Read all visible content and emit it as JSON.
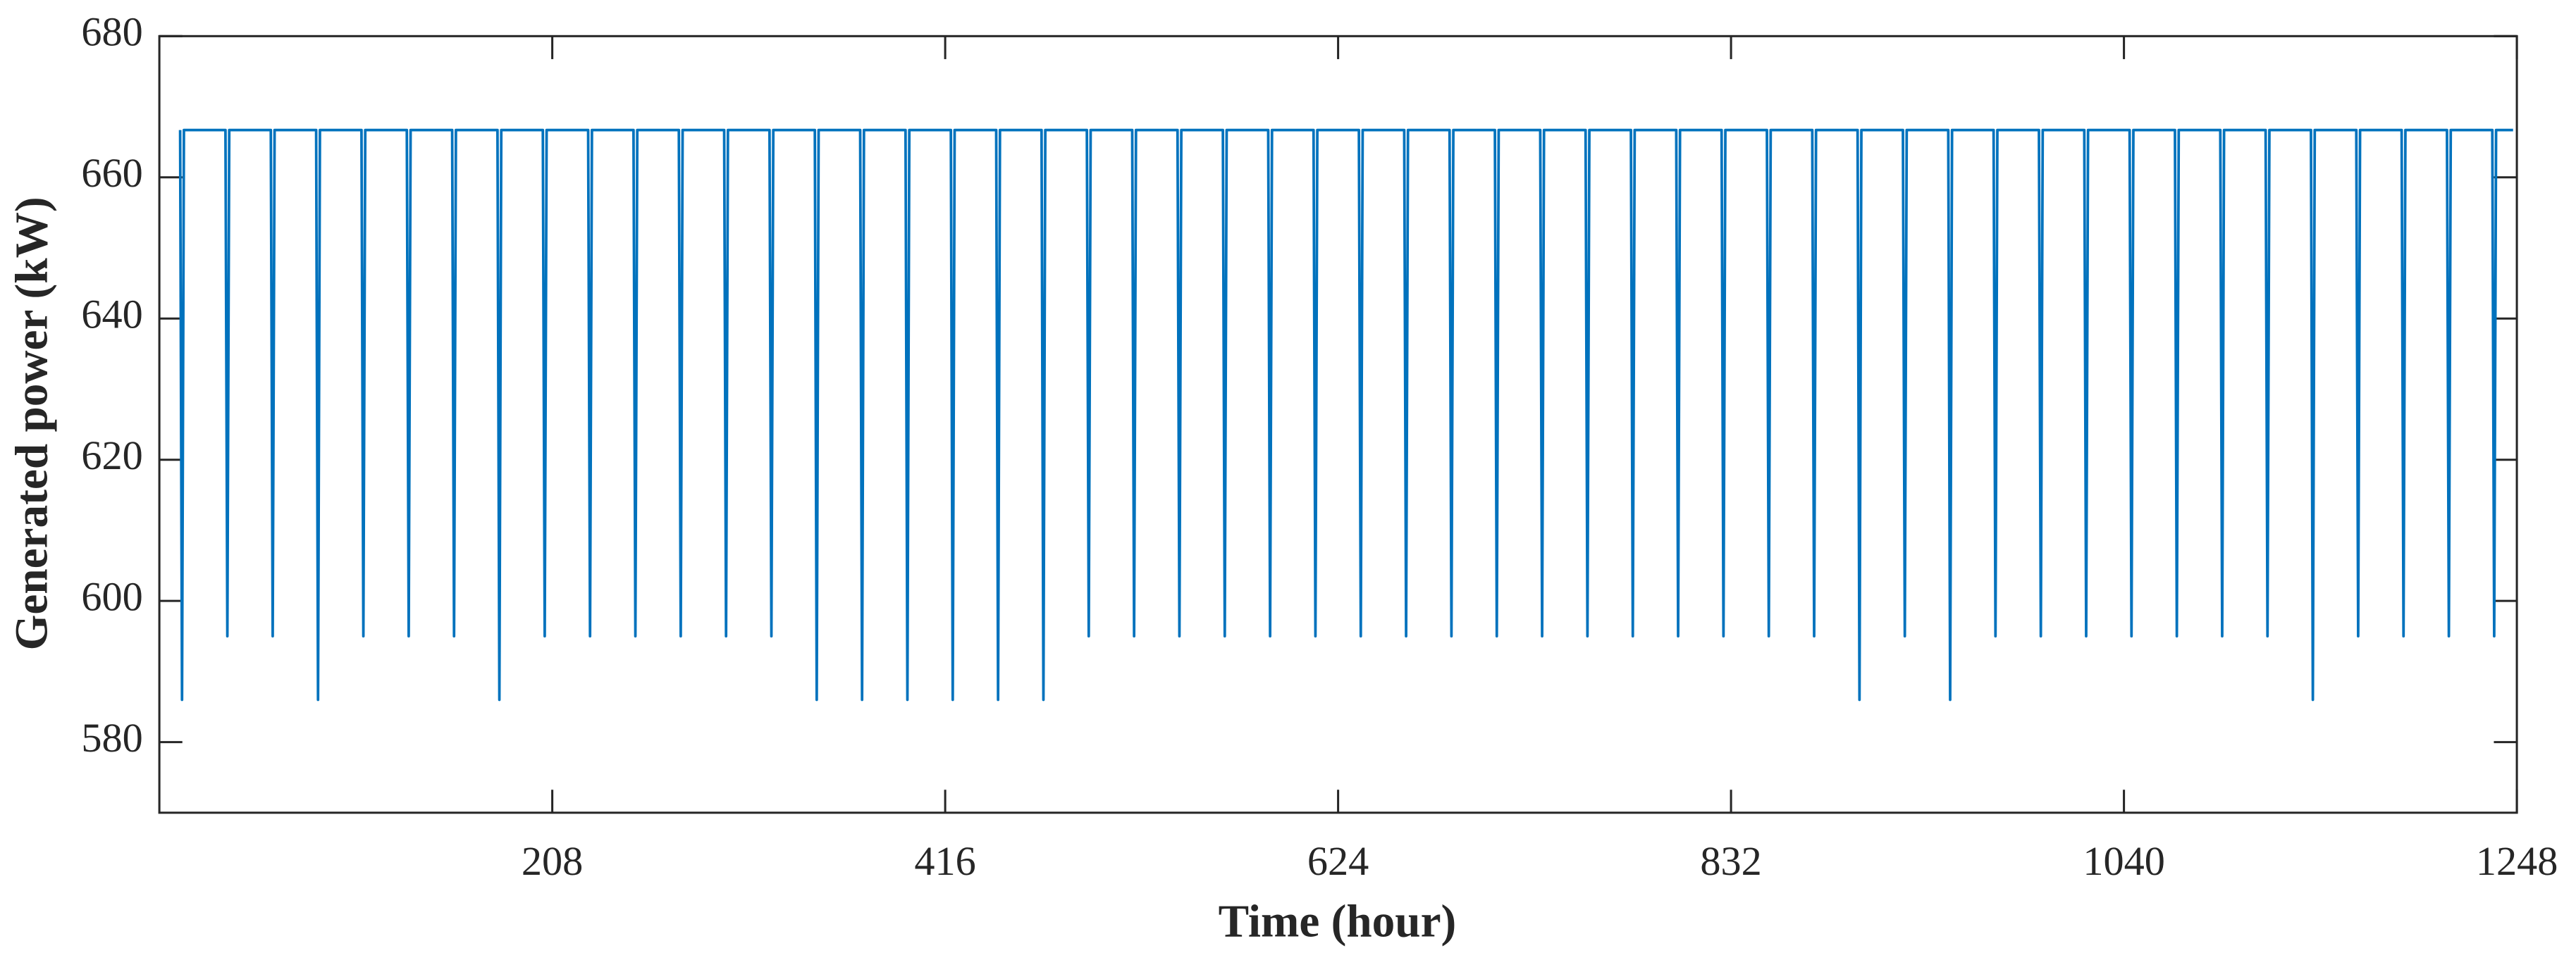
{
  "chart_data": {
    "type": "line",
    "x_label": "Time (hour)",
    "y_label": "Generated power (kW)",
    "color": "#0072bd",
    "xlim": [
      0,
      1248
    ],
    "xticks": [
      208,
      416,
      624,
      832,
      1040,
      1248
    ],
    "ylim": [
      570,
      680
    ],
    "yticks": [
      580,
      600,
      620,
      640,
      660,
      680
    ],
    "grid": false,
    "x": [
      11,
      12,
      13,
      35,
      36,
      37,
      59,
      60,
      61,
      83,
      84,
      85,
      107,
      108,
      109,
      131,
      132,
      133,
      155,
      156,
      157,
      179,
      180,
      181,
      203,
      204,
      205,
      227,
      228,
      229,
      251,
      252,
      253,
      275,
      276,
      277,
      299,
      300,
      301,
      323,
      324,
      325,
      347,
      348,
      349,
      371,
      372,
      373,
      395,
      396,
      397,
      419,
      420,
      421,
      443,
      444,
      445,
      467,
      468,
      469,
      491,
      492,
      493,
      515,
      516,
      517,
      539,
      540,
      541,
      563,
      564,
      565,
      587,
      588,
      589,
      611,
      612,
      613,
      635,
      636,
      637,
      659,
      660,
      661,
      683,
      684,
      685,
      707,
      708,
      709,
      731,
      732,
      733,
      755,
      756,
      757,
      779,
      780,
      781,
      803,
      804,
      805,
      827,
      828,
      829,
      851,
      852,
      853,
      875,
      876,
      877,
      899,
      900,
      901,
      923,
      924,
      925,
      947,
      948,
      949,
      971,
      972,
      973,
      995,
      996,
      997,
      1019,
      1020,
      1021,
      1043,
      1044,
      1045,
      1067,
      1068,
      1069,
      1091,
      1092,
      1093,
      1115,
      1116,
      1117,
      1139,
      1140,
      1141,
      1163,
      1164,
      1165,
      1187,
      1188,
      1189,
      1211,
      1212,
      1213,
      1235,
      1236,
      1237,
      1246
    ],
    "values": [
      666.7,
      586,
      666.7,
      666.7,
      595,
      666.7,
      666.7,
      595,
      666.7,
      666.7,
      586,
      666.7,
      666.7,
      595,
      666.7,
      666.7,
      595,
      666.7,
      666.7,
      595,
      666.7,
      666.7,
      586,
      666.7,
      666.7,
      595,
      666.7,
      666.7,
      595,
      666.7,
      666.7,
      595,
      666.7,
      666.7,
      595,
      666.7,
      666.7,
      595,
      666.7,
      666.7,
      595,
      666.7,
      666.7,
      586,
      666.7,
      666.7,
      586,
      666.7,
      666.7,
      586,
      666.7,
      666.7,
      586,
      666.7,
      666.7,
      586,
      666.7,
      666.7,
      586,
      666.7,
      666.7,
      595,
      666.7,
      666.7,
      595,
      666.7,
      666.7,
      595,
      666.7,
      666.7,
      595,
      666.7,
      666.7,
      595,
      666.7,
      666.7,
      595,
      666.7,
      666.7,
      595,
      666.7,
      666.7,
      595,
      666.7,
      666.7,
      595,
      666.7,
      666.7,
      595,
      666.7,
      666.7,
      595,
      666.7,
      666.7,
      595,
      666.7,
      666.7,
      595,
      666.7,
      666.7,
      595,
      666.7,
      666.7,
      595,
      666.7,
      666.7,
      595,
      666.7,
      666.7,
      595,
      666.7,
      666.7,
      586,
      666.7,
      666.7,
      595,
      666.7,
      666.7,
      586,
      666.7,
      666.7,
      595,
      666.7,
      666.7,
      595,
      666.7,
      666.7,
      595,
      666.7,
      666.7,
      595,
      666.7,
      666.7,
      595,
      666.7,
      666.7,
      595,
      666.7,
      666.7,
      595,
      666.7,
      666.7,
      586,
      666.7,
      666.7,
      595,
      666.7,
      666.7,
      595,
      666.7,
      666.7,
      595,
      666.7,
      666.7,
      595,
      666.7,
      666.7
    ]
  }
}
